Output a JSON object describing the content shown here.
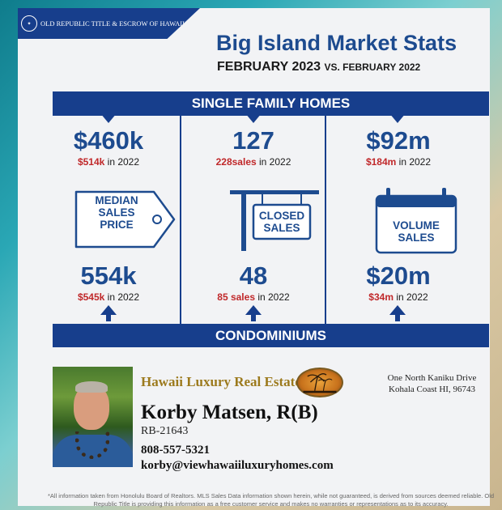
{
  "header": {
    "company": "OLD REPUBLIC TITLE & ESCROW OF HAWAII",
    "title": "Big Island Market Stats",
    "period": "FEBRUARY 2023",
    "comparison": "VS. FEBRUARY 2022"
  },
  "sections": {
    "single_family_label": "SINGLE FAMILY HOMES",
    "condo_label": "CONDOMINIUMS"
  },
  "single_family": {
    "median": {
      "value": "$460k",
      "prev_value": "$514k",
      "prev_suffix": " in 2022"
    },
    "closed": {
      "value": "127",
      "prev_value": "228sales",
      "prev_suffix": " in 2022"
    },
    "volume": {
      "value": "$92m",
      "prev_value": "$184m",
      "prev_suffix": " in 2022"
    }
  },
  "icons": {
    "median_label": "MEDIAN\nSALES\nPRICE",
    "closed_label": "CLOSED\nSALES",
    "volume_label": "VOLUME\nSALES",
    "median_icon": "price-tag-icon",
    "closed_icon": "hanging-sign-icon",
    "volume_icon": "calendar-icon"
  },
  "condominiums": {
    "median": {
      "value": "554k",
      "prev_value": "$545k",
      "prev_suffix": " in 2022"
    },
    "closed": {
      "value": "48",
      "prev_value": "85 sales",
      "prev_suffix": " in 2022"
    },
    "volume": {
      "value": "$20m",
      "prev_value": "$34m",
      "prev_suffix": " in 2022"
    }
  },
  "agent": {
    "brand": "Hawaii Luxury Real Estate",
    "name": "Korby Matsen, R(B)",
    "license": "RB-21643",
    "phone": "808-557-5321",
    "email": "korby@viewhawaiiluxuryhomes.com",
    "address_line1": "One North Kaniku Drive",
    "address_line2": "Kohala Coast HI, 96743"
  },
  "footer": {
    "disclaimer": "*All information taken from Honolulu Board of Realtors. MLS Sales Data information shown herein, while not guaranteed, is derived from sources deemed reliable. Old Republic Title is providing this information as a free customer service and makes no warranties or representations as to its accuracy."
  },
  "colors": {
    "navy": "#173e8c",
    "blue_text": "#1d4b8f",
    "red_text": "#c0282a",
    "gold_text": "#9c7a1d"
  }
}
